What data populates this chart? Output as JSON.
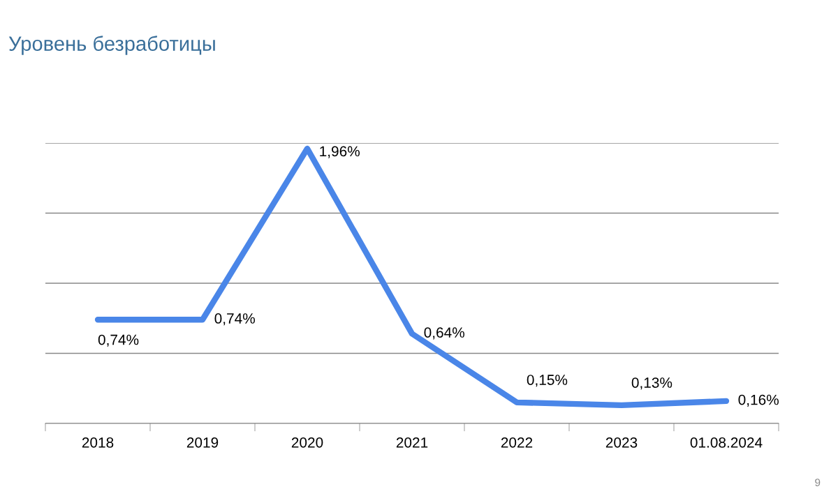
{
  "chart_data": {
    "type": "line",
    "title": "Уровень безработицы",
    "categories": [
      "2018",
      "2019",
      "2020",
      "2021",
      "2022",
      "2023",
      "01.08.2024"
    ],
    "series": [
      {
        "color": "#4a86e8",
        "values": [
          0.74,
          0.74,
          1.96,
          0.64,
          0.15,
          0.13,
          0.16
        ],
        "value_labels": [
          "0,74%",
          "0,74%",
          "1,96%",
          "0,64%",
          "0,15%",
          "0,13%",
          "0,16%"
        ]
      }
    ],
    "ylim": [
      0,
      2
    ],
    "yticks": [
      {
        "value": 0,
        "label": null
      },
      {
        "value": 0.5,
        "label": null
      },
      {
        "value": 1,
        "label": null
      },
      {
        "value": 1.5,
        "label": null
      },
      {
        "value": 2,
        "label": null
      }
    ],
    "tick_labels": "x",
    "grid": "y",
    "marker": "none",
    "line_style": "solid",
    "legend": false,
    "annotations": [
      "9"
    ]
  }
}
